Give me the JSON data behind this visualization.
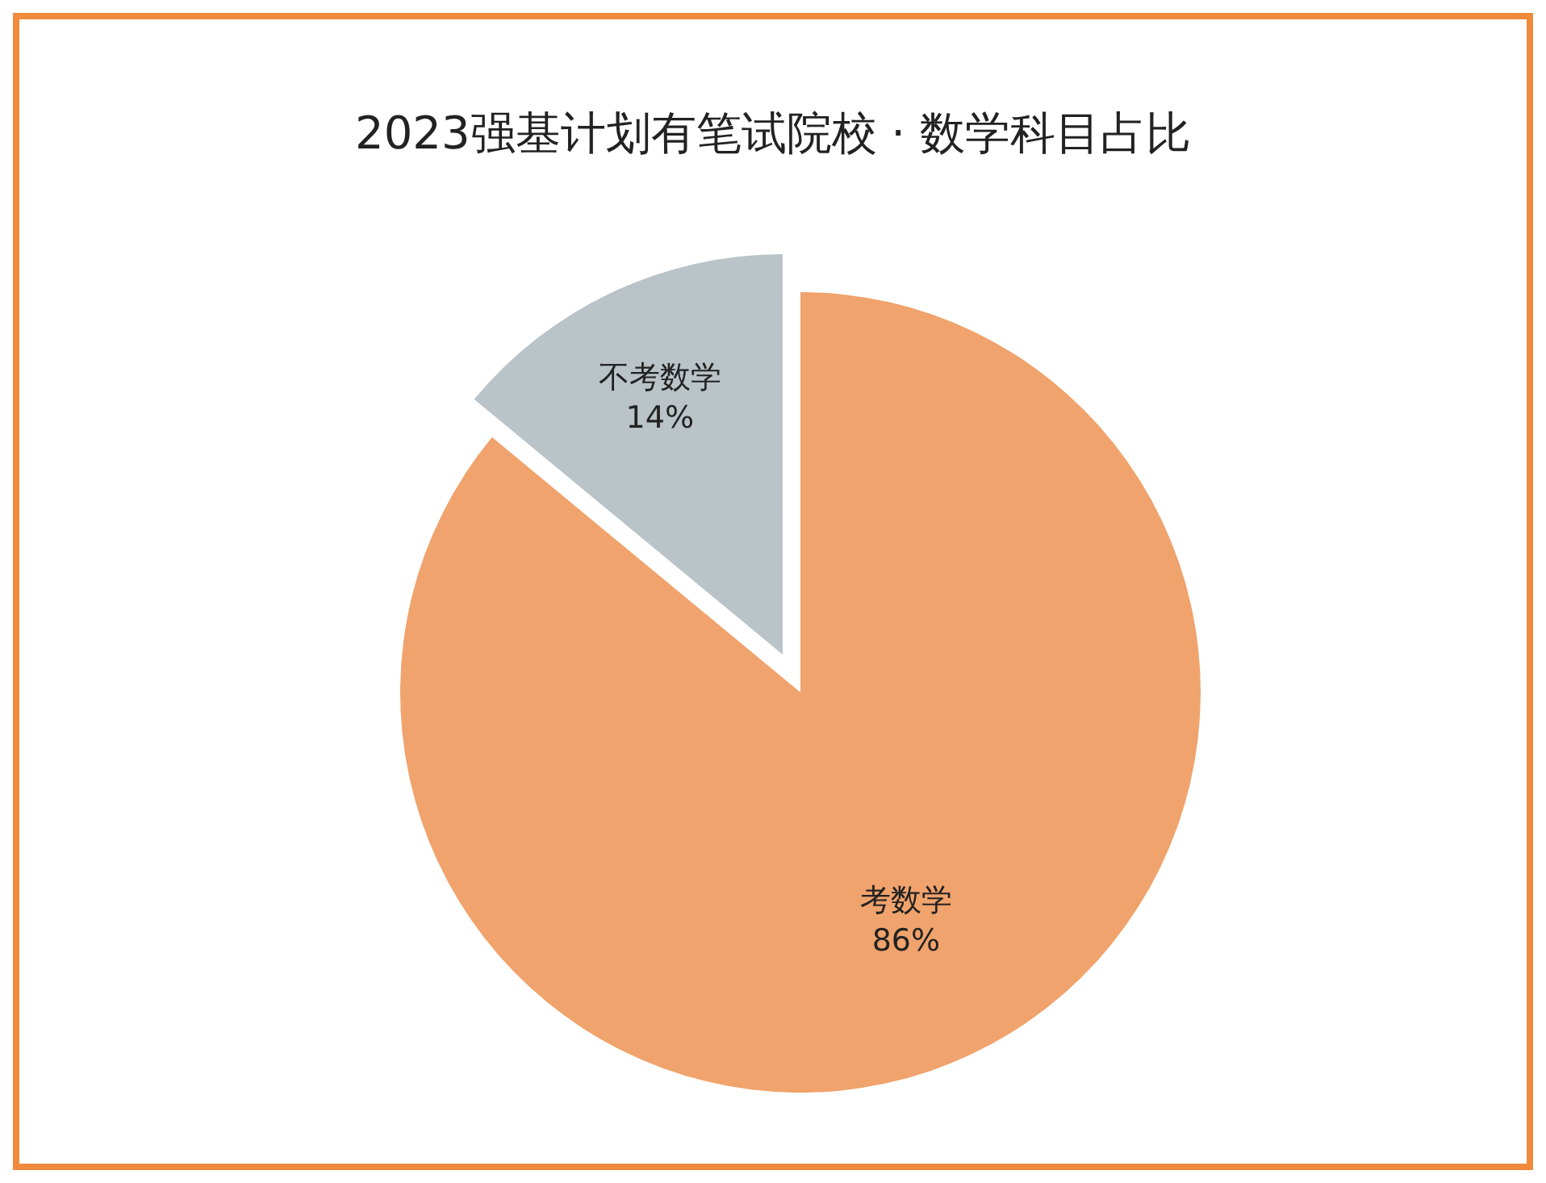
{
  "chart_data": {
    "type": "pie",
    "title": "2023强基计划有笔试院校 · 数学科目占比",
    "categories": [
      "考数学",
      "不考数学"
    ],
    "values": [
      86,
      14
    ],
    "colors": [
      "#f0a36c",
      "#b9c3c8"
    ],
    "value_labels": [
      "86%",
      "14%"
    ]
  }
}
